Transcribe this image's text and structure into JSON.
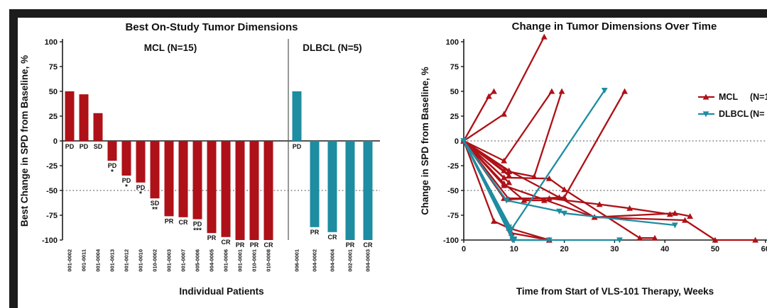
{
  "chart_data": [
    {
      "id": "waterfall",
      "type": "bar",
      "title": "Best On-Study Tumor Dimensions",
      "ylabel": "Best Change in SPD from Baseline, %",
      "xlabel": "Individual Patients",
      "ylim": [
        -100,
        100
      ],
      "yticks": [
        100,
        75,
        50,
        25,
        0,
        -25,
        -50,
        -75,
        -100
      ],
      "reference_lines": [
        {
          "y": -50,
          "style": "dotted"
        }
      ],
      "grid": false,
      "groups": [
        {
          "label": "MCL (N=15)",
          "color": "#AE1117",
          "bars": [
            {
              "patient": "001-0002",
              "value": 50,
              "response": "PD",
              "note": ""
            },
            {
              "patient": "001-0011",
              "value": 47,
              "response": "PD",
              "note": ""
            },
            {
              "patient": "001-0004",
              "value": 28,
              "response": "SD",
              "note": ""
            },
            {
              "patient": "001-0013",
              "value": -20,
              "response": "PD",
              "note": "*"
            },
            {
              "patient": "001-0012",
              "value": -35,
              "response": "PD",
              "note": "*"
            },
            {
              "patient": "001-0010",
              "value": -42,
              "response": "PD",
              "note": "*"
            },
            {
              "patient": "010-0002",
              "value": -58,
              "response": "SD",
              "note": "**"
            },
            {
              "patient": "001-0003",
              "value": -76,
              "response": "PR",
              "note": ""
            },
            {
              "patient": "001-0007",
              "value": -77,
              "response": "CR",
              "note": ""
            },
            {
              "patient": "005-0006",
              "value": -79,
              "response": "PD",
              "note": "***"
            },
            {
              "patient": "004-0005",
              "value": -93,
              "response": "PR",
              "note": ""
            },
            {
              "patient": "001-0006",
              "value": -97,
              "response": "CR",
              "note": ""
            },
            {
              "patient": "001-0001",
              "value": -100,
              "response": "PR",
              "note": ""
            },
            {
              "patient": "010-0001",
              "value": -100,
              "response": "PR",
              "note": ""
            },
            {
              "patient": "010-0008",
              "value": -100,
              "response": "CR",
              "note": ""
            }
          ]
        },
        {
          "label": "DLBCL (N=5)",
          "color": "#1E8CA1",
          "bars": [
            {
              "patient": "006-0001",
              "value": 50,
              "response": "PD",
              "note": ""
            },
            {
              "patient": "004-0002",
              "value": -87,
              "response": "PR",
              "note": ""
            },
            {
              "patient": "004-0004",
              "value": -92,
              "response": "CR",
              "note": ""
            },
            {
              "patient": "002-0001",
              "value": -100,
              "response": "PR",
              "note": ""
            },
            {
              "patient": "004-0003",
              "value": -100,
              "response": "CR",
              "note": ""
            }
          ]
        }
      ]
    },
    {
      "id": "spider",
      "type": "line",
      "title": "Change in Tumor Dimensions Over Time",
      "ylabel": "Change in SPD from Baseline, %",
      "xlabel": "Time from Start of VLS-101 Therapy, Weeks",
      "ylim": [
        -100,
        100
      ],
      "yticks": [
        100,
        75,
        50,
        25,
        0,
        -25,
        -50,
        -75,
        -100
      ],
      "xlim": [
        0,
        60
      ],
      "xticks": [
        0,
        10,
        20,
        30,
        40,
        50,
        60
      ],
      "reference_lines": [
        {
          "y": 0,
          "style": "dotted"
        },
        {
          "y": -50,
          "style": "dotted"
        }
      ],
      "grid": false,
      "legend": [
        {
          "label": "MCL",
          "n_label": "(N=15)",
          "color": "#AE1117",
          "marker": "triangle-up"
        },
        {
          "label": "DLBCL",
          "n_label": "(N= 5)",
          "color": "#1E8CA1",
          "marker": "triangle-down"
        }
      ],
      "series": [
        {
          "group": "MCL",
          "points": [
            [
              0,
              0
            ],
            [
              5,
              45
            ],
            [
              6,
              50
            ]
          ]
        },
        {
          "group": "MCL",
          "points": [
            [
              0,
              0
            ],
            [
              8,
              27
            ],
            [
              16,
              105
            ]
          ]
        },
        {
          "group": "MCL",
          "points": [
            [
              0,
              0
            ],
            [
              8,
              -20
            ],
            [
              17.5,
              50
            ]
          ]
        },
        {
          "group": "MCL",
          "points": [
            [
              0,
              0
            ],
            [
              9,
              -31
            ],
            [
              14,
              -36
            ],
            [
              19.5,
              50
            ]
          ]
        },
        {
          "group": "MCL",
          "points": [
            [
              0,
              0
            ],
            [
              9,
              -59
            ],
            [
              20,
              -57
            ],
            [
              32,
              50
            ]
          ]
        },
        {
          "group": "MCL",
          "points": [
            [
              0,
              0
            ],
            [
              6,
              -81
            ],
            [
              9,
              -88
            ],
            [
              17,
              -100
            ]
          ]
        },
        {
          "group": "MCL",
          "points": [
            [
              0,
              0
            ],
            [
              8,
              -37
            ],
            [
              17,
              -38
            ],
            [
              20,
              -49
            ],
            [
              35,
              -98
            ],
            [
              38,
              -98
            ]
          ]
        },
        {
          "group": "MCL",
          "points": [
            [
              0,
              0
            ],
            [
              8,
              -58
            ],
            [
              17,
              -58
            ],
            [
              27,
              -64
            ],
            [
              33,
              -68
            ],
            [
              41,
              -74
            ]
          ]
        },
        {
          "group": "MCL",
          "points": [
            [
              0,
              0
            ],
            [
              9,
              -30
            ],
            [
              19,
              -57
            ],
            [
              26,
              -77
            ],
            [
              42,
              -73
            ],
            [
              45,
              -76
            ]
          ]
        },
        {
          "group": "MCL",
          "points": [
            [
              0,
              0
            ],
            [
              8,
              -45
            ],
            [
              26,
              -77
            ],
            [
              44,
              -80
            ],
            [
              50,
              -100
            ],
            [
              58,
              -100
            ]
          ]
        },
        {
          "group": "MCL",
          "points": [
            [
              0,
              0
            ],
            [
              9.5,
              -93
            ],
            [
              17,
              -100
            ]
          ]
        },
        {
          "group": "MCL",
          "points": [
            [
              0,
              0
            ],
            [
              8,
              -43
            ],
            [
              12,
              -60
            ],
            [
              16,
              -60
            ]
          ]
        },
        {
          "group": "MCL",
          "points": [
            [
              0,
              0
            ],
            [
              9,
              -35
            ]
          ]
        },
        {
          "group": "MCL",
          "points": [
            [
              0,
              0
            ],
            [
              8,
              -30
            ]
          ]
        },
        {
          "group": "MCL",
          "points": [
            [
              0,
              0
            ],
            [
              9,
              -42
            ]
          ]
        },
        {
          "group": "DLBCL",
          "points": [
            [
              0,
              0
            ],
            [
              9.5,
              -89
            ],
            [
              28,
              51
            ]
          ]
        },
        {
          "group": "DLBCL",
          "points": [
            [
              0,
              0
            ],
            [
              8.5,
              -60
            ],
            [
              19,
              -71
            ],
            [
              20,
              -73
            ],
            [
              42,
              -85
            ]
          ]
        },
        {
          "group": "DLBCL",
          "points": [
            [
              0,
              0
            ],
            [
              9.7,
              -100
            ],
            [
              17,
              -100
            ]
          ]
        },
        {
          "group": "DLBCL",
          "points": [
            [
              0,
              0
            ],
            [
              10,
              -100
            ],
            [
              31,
              -100
            ]
          ]
        },
        {
          "group": "DLBCL",
          "points": [
            [
              0,
              0
            ],
            [
              9,
              -87
            ],
            [
              10,
              -99
            ]
          ]
        }
      ]
    }
  ]
}
